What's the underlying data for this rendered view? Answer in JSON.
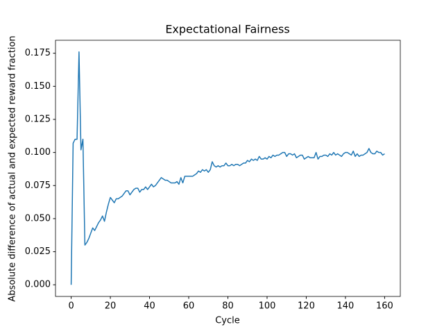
{
  "chart_data": {
    "type": "line",
    "title": "Expectational Fairness",
    "xlabel": "Cycle",
    "ylabel": "Absolute difference of actual and expected reward fraction",
    "x": [
      0,
      1,
      2,
      3,
      4,
      5,
      6,
      7,
      8,
      9,
      10,
      11,
      12,
      13,
      14,
      15,
      16,
      17,
      18,
      19,
      20,
      21,
      22,
      23,
      24,
      25,
      26,
      27,
      28,
      29,
      30,
      31,
      32,
      33,
      34,
      35,
      36,
      37,
      38,
      39,
      40,
      41,
      42,
      43,
      44,
      45,
      46,
      47,
      48,
      49,
      50,
      51,
      52,
      53,
      54,
      55,
      56,
      57,
      58,
      59,
      60,
      61,
      62,
      63,
      64,
      65,
      66,
      67,
      68,
      69,
      70,
      71,
      72,
      73,
      74,
      75,
      76,
      77,
      78,
      79,
      80,
      81,
      82,
      83,
      84,
      85,
      86,
      87,
      88,
      89,
      90,
      91,
      92,
      93,
      94,
      95,
      96,
      97,
      98,
      99,
      100,
      101,
      102,
      103,
      104,
      105,
      106,
      107,
      108,
      109,
      110,
      111,
      112,
      113,
      114,
      115,
      116,
      117,
      118,
      119,
      120,
      121,
      122,
      123,
      124,
      125,
      126,
      127,
      128,
      129,
      130,
      131,
      132,
      133,
      134,
      135,
      136,
      137,
      138,
      139,
      140,
      141,
      142,
      143,
      144,
      145,
      146,
      147,
      148,
      149,
      150,
      151,
      152,
      153,
      154,
      155,
      156,
      157,
      158,
      159,
      160
    ],
    "series": [
      {
        "color": "#1f77b4",
        "values": [
          0,
          0.107,
          0.11,
          0.11,
          0.176,
          0.102,
          0.11,
          0.03,
          0.032,
          0.035,
          0.039,
          0.043,
          0.041,
          0.044,
          0.047,
          0.049,
          0.052,
          0.048,
          0.055,
          0.061,
          0.066,
          0.064,
          0.062,
          0.065,
          0.065,
          0.066,
          0.067,
          0.069,
          0.071,
          0.071,
          0.068,
          0.07,
          0.072,
          0.073,
          0.073,
          0.07,
          0.072,
          0.072,
          0.074,
          0.072,
          0.074,
          0.076,
          0.074,
          0.075,
          0.077,
          0.079,
          0.081,
          0.08,
          0.079,
          0.079,
          0.078,
          0.077,
          0.077,
          0.077,
          0.078,
          0.076,
          0.081,
          0.077,
          0.082,
          0.082,
          0.082,
          0.082,
          0.082,
          0.083,
          0.084,
          0.086,
          0.085,
          0.087,
          0.086,
          0.087,
          0.085,
          0.087,
          0.093,
          0.09,
          0.089,
          0.09,
          0.089,
          0.09,
          0.09,
          0.092,
          0.09,
          0.09,
          0.091,
          0.09,
          0.091,
          0.091,
          0.09,
          0.091,
          0.092,
          0.092,
          0.094,
          0.093,
          0.095,
          0.094,
          0.095,
          0.094,
          0.097,
          0.095,
          0.095,
          0.096,
          0.095,
          0.097,
          0.096,
          0.098,
          0.097,
          0.098,
          0.098,
          0.099,
          0.1,
          0.1,
          0.097,
          0.099,
          0.099,
          0.098,
          0.099,
          0.096,
          0.097,
          0.098,
          0.098,
          0.095,
          0.096,
          0.097,
          0.096,
          0.096,
          0.096,
          0.1,
          0.095,
          0.097,
          0.097,
          0.098,
          0.098,
          0.097,
          0.099,
          0.098,
          0.1,
          0.098,
          0.099,
          0.098,
          0.097,
          0.099,
          0.1,
          0.1,
          0.099,
          0.098,
          0.101,
          0.097,
          0.099,
          0.097,
          0.098,
          0.098,
          0.099,
          0.1,
          0.103,
          0.1,
          0.099,
          0.099,
          0.101,
          0.1,
          0.1,
          0.098,
          0.099
        ]
      }
    ],
    "xlim": [
      -8,
      168
    ],
    "ylim": [
      -0.0088,
      0.1848
    ],
    "xticks": [
      0,
      20,
      40,
      60,
      80,
      100,
      120,
      140,
      160
    ],
    "yticks": [
      {
        "value": 0,
        "label": "0.000"
      },
      {
        "value": 0.025,
        "label": "0.025"
      },
      {
        "value": 0.05,
        "label": "0.050"
      },
      {
        "value": 0.075,
        "label": "0.075"
      },
      {
        "value": 0.1,
        "label": "0.100"
      },
      {
        "value": 0.125,
        "label": "0.125"
      },
      {
        "value": 0.15,
        "label": "0.150"
      },
      {
        "value": 0.175,
        "label": "0.175"
      }
    ]
  }
}
